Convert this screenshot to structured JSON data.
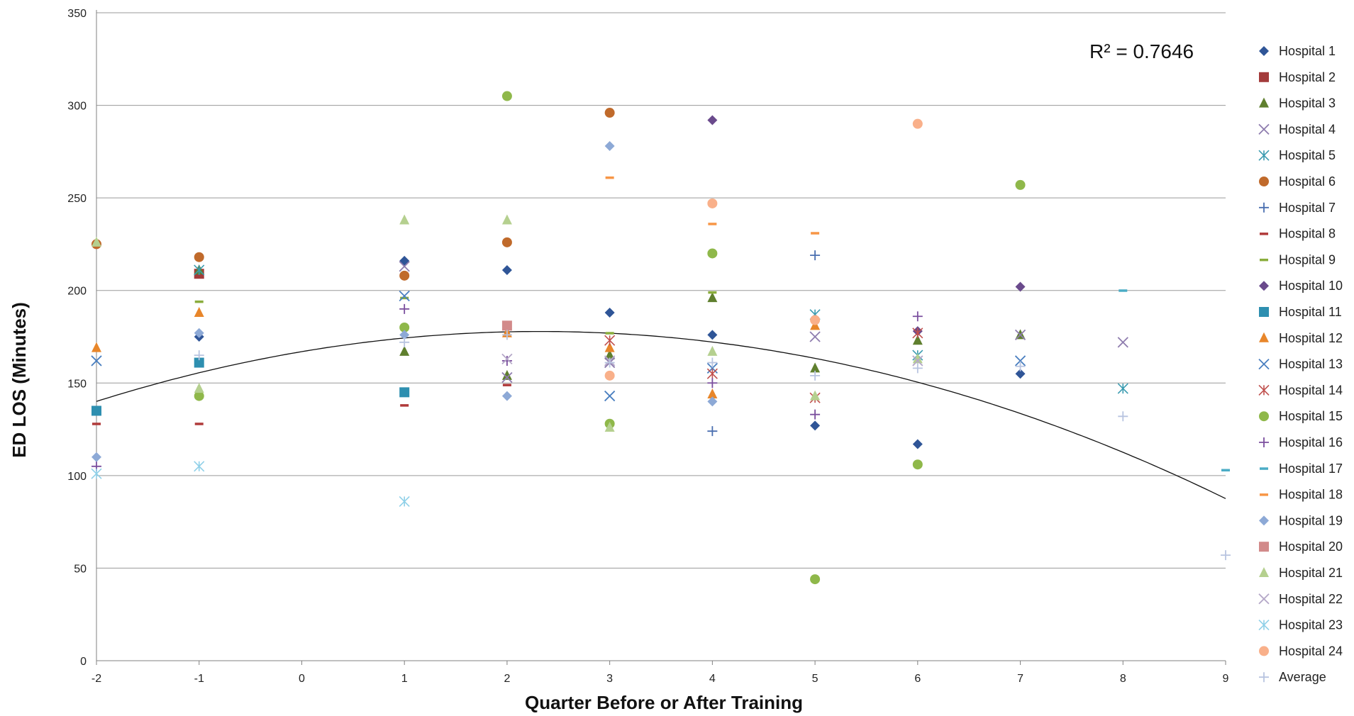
{
  "chart_data": {
    "type": "scatter",
    "title": "",
    "xlabel": "Quarter Before or After Training",
    "ylabel": "ED LOS  (Minutes)",
    "xlim": [
      -2,
      9
    ],
    "ylim": [
      0,
      350
    ],
    "x_ticks": [
      -2,
      -1,
      0,
      1,
      2,
      3,
      4,
      5,
      6,
      7,
      8,
      9
    ],
    "y_ticks": [
      0,
      50,
      100,
      150,
      200,
      250,
      300,
      350
    ],
    "grid": "horizontal",
    "legend_position": "right",
    "annotation": "R² = 0.7646",
    "trendline": {
      "type": "polynomial",
      "degree": 2,
      "points": [
        [
          -2,
          140
        ],
        [
          -1,
          156
        ],
        [
          0,
          167
        ],
        [
          1,
          174
        ],
        [
          2,
          177
        ],
        [
          3,
          177
        ],
        [
          4,
          172
        ],
        [
          5,
          164
        ],
        [
          6,
          150
        ],
        [
          7,
          134
        ],
        [
          8,
          113
        ],
        [
          9,
          87
        ]
      ]
    },
    "series": [
      {
        "name": "Hospital 1",
        "marker": "diamond",
        "color": "#2f5597",
        "points": [
          [
            -1,
            175
          ],
          [
            1,
            216
          ],
          [
            2,
            211
          ],
          [
            3,
            188
          ],
          [
            4,
            176
          ],
          [
            5,
            127
          ],
          [
            6,
            117
          ],
          [
            7,
            155
          ]
        ]
      },
      {
        "name": "Hospital 2",
        "marker": "square",
        "color": "#a33b3b",
        "points": [
          [
            -1,
            209
          ]
        ]
      },
      {
        "name": "Hospital 3",
        "marker": "triangle",
        "color": "#5f7f2e",
        "points": [
          [
            -1,
            211
          ],
          [
            1,
            167
          ],
          [
            2,
            154
          ],
          [
            3,
            165
          ],
          [
            4,
            196
          ],
          [
            5,
            158
          ],
          [
            6,
            173
          ],
          [
            7,
            176
          ]
        ]
      },
      {
        "name": "Hospital 4",
        "marker": "x",
        "color": "#8e7cae",
        "points": [
          [
            1,
            213
          ],
          [
            2,
            153
          ],
          [
            3,
            161
          ],
          [
            5,
            175
          ],
          [
            7,
            176
          ],
          [
            8,
            172
          ]
        ]
      },
      {
        "name": "Hospital 5",
        "marker": "star",
        "color": "#3a9bb0",
        "points": [
          [
            -1,
            211
          ],
          [
            5,
            187
          ],
          [
            6,
            165
          ],
          [
            8,
            147
          ]
        ]
      },
      {
        "name": "Hospital 6",
        "marker": "circle",
        "color": "#c06a2b",
        "points": [
          [
            -2,
            225
          ],
          [
            -1,
            218
          ],
          [
            1,
            208
          ],
          [
            2,
            226
          ],
          [
            3,
            296
          ]
        ]
      },
      {
        "name": "Hospital 7",
        "marker": "plus",
        "color": "#4a6fb0",
        "points": [
          [
            4,
            124
          ],
          [
            5,
            219
          ]
        ]
      },
      {
        "name": "Hospital 8",
        "marker": "dash",
        "color": "#b03a3a",
        "points": [
          [
            -2,
            128
          ],
          [
            -1,
            128
          ],
          [
            1,
            138
          ],
          [
            2,
            149
          ]
        ]
      },
      {
        "name": "Hospital 9",
        "marker": "dash",
        "color": "#8aad3c",
        "points": [
          [
            -1,
            194
          ],
          [
            1,
            196
          ],
          [
            3,
            177
          ],
          [
            4,
            199
          ]
        ]
      },
      {
        "name": "Hospital 10",
        "marker": "diamond",
        "color": "#6a4a8c",
        "points": [
          [
            4,
            292
          ],
          [
            6,
            178
          ],
          [
            7,
            202
          ]
        ]
      },
      {
        "name": "Hospital 11",
        "marker": "square",
        "color": "#2e8fb0",
        "points": [
          [
            -2,
            135
          ],
          [
            -1,
            161
          ],
          [
            1,
            145
          ]
        ]
      },
      {
        "name": "Hospital 12",
        "marker": "triangle",
        "color": "#e8862a",
        "points": [
          [
            -2,
            169
          ],
          [
            -1,
            188
          ],
          [
            2,
            177
          ],
          [
            3,
            169
          ],
          [
            4,
            144
          ],
          [
            5,
            181
          ]
        ]
      },
      {
        "name": "Hospital 13",
        "marker": "x",
        "color": "#4a7fc0",
        "points": [
          [
            -2,
            162
          ],
          [
            1,
            197
          ],
          [
            3,
            143
          ],
          [
            4,
            158
          ],
          [
            7,
            162
          ]
        ]
      },
      {
        "name": "Hospital 14",
        "marker": "star",
        "color": "#c0504d",
        "points": [
          [
            3,
            173
          ],
          [
            4,
            155
          ],
          [
            5,
            142
          ],
          [
            6,
            177
          ]
        ]
      },
      {
        "name": "Hospital 15",
        "marker": "circle",
        "color": "#8fb84a",
        "points": [
          [
            -1,
            143
          ],
          [
            1,
            180
          ],
          [
            2,
            305
          ],
          [
            3,
            128
          ],
          [
            4,
            220
          ],
          [
            5,
            44
          ],
          [
            6,
            106
          ],
          [
            7,
            257
          ]
        ]
      },
      {
        "name": "Hospital 16",
        "marker": "plus",
        "color": "#7b4f9e",
        "points": [
          [
            -2,
            105
          ],
          [
            1,
            190
          ],
          [
            2,
            162
          ],
          [
            4,
            150
          ],
          [
            5,
            133
          ],
          [
            6,
            186
          ]
        ]
      },
      {
        "name": "Hospital 17",
        "marker": "dash",
        "color": "#4bacc6",
        "points": [
          [
            8,
            200
          ],
          [
            9,
            103
          ]
        ]
      },
      {
        "name": "Hospital 18",
        "marker": "dash",
        "color": "#f79646",
        "points": [
          [
            3,
            261
          ],
          [
            4,
            236
          ],
          [
            5,
            231
          ]
        ]
      },
      {
        "name": "Hospital 19",
        "marker": "diamond",
        "color": "#8da9d6",
        "points": [
          [
            -2,
            110
          ],
          [
            -1,
            177
          ],
          [
            1,
            176
          ],
          [
            2,
            143
          ],
          [
            3,
            278
          ],
          [
            4,
            140
          ]
        ]
      },
      {
        "name": "Hospital 20",
        "marker": "square",
        "color": "#d28a8a",
        "points": [
          [
            2,
            181
          ]
        ]
      },
      {
        "name": "Hospital 21",
        "marker": "triangle",
        "color": "#b5d08f",
        "points": [
          [
            -2,
            226
          ],
          [
            -1,
            147
          ],
          [
            1,
            238
          ],
          [
            2,
            238
          ],
          [
            3,
            126
          ],
          [
            4,
            167
          ],
          [
            5,
            143
          ],
          [
            6,
            163
          ]
        ]
      },
      {
        "name": "Hospital 22",
        "marker": "x",
        "color": "#b5a8c8",
        "points": [
          [
            2,
            163
          ],
          [
            3,
            162
          ],
          [
            6,
            162
          ]
        ]
      },
      {
        "name": "Hospital 23",
        "marker": "star",
        "color": "#8fd0e8",
        "points": [
          [
            -2,
            101
          ],
          [
            -1,
            105
          ],
          [
            1,
            86
          ]
        ]
      },
      {
        "name": "Hospital 24",
        "marker": "circle",
        "color": "#f9b08a",
        "points": [
          [
            3,
            154
          ],
          [
            4,
            247
          ],
          [
            5,
            184
          ],
          [
            6,
            290
          ]
        ]
      },
      {
        "name": "Average",
        "marker": "plus",
        "color": "#b8c4e0",
        "points": [
          [
            -1,
            165
          ],
          [
            1,
            172
          ],
          [
            2,
            176
          ],
          [
            3,
            161
          ],
          [
            4,
            161
          ],
          [
            5,
            154
          ],
          [
            6,
            158
          ],
          [
            7,
            159
          ],
          [
            8,
            132
          ],
          [
            9,
            57
          ]
        ]
      }
    ]
  }
}
